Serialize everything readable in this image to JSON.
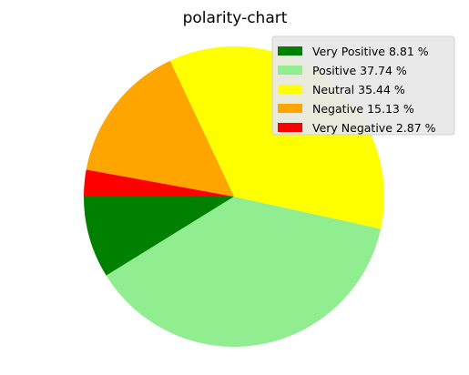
{
  "chart_data": {
    "type": "pie",
    "title": "polarity-chart",
    "start_angle_deg": 180,
    "direction": "counterclockwise",
    "legend_position": "top-right",
    "slices": [
      {
        "label": "Very Positive 8.81 %",
        "value": 8.81,
        "color": "#008000"
      },
      {
        "label": "Positive 37.74 %",
        "value": 37.74,
        "color": "#90ee90"
      },
      {
        "label": "Neutral 35.44 %",
        "value": 35.44,
        "color": "#ffff00"
      },
      {
        "label": "Negative 15.13 %",
        "value": 15.13,
        "color": "#ffa500"
      },
      {
        "label": "Very Negative 2.87 %",
        "value": 2.87,
        "color": "#ff0000"
      }
    ]
  }
}
